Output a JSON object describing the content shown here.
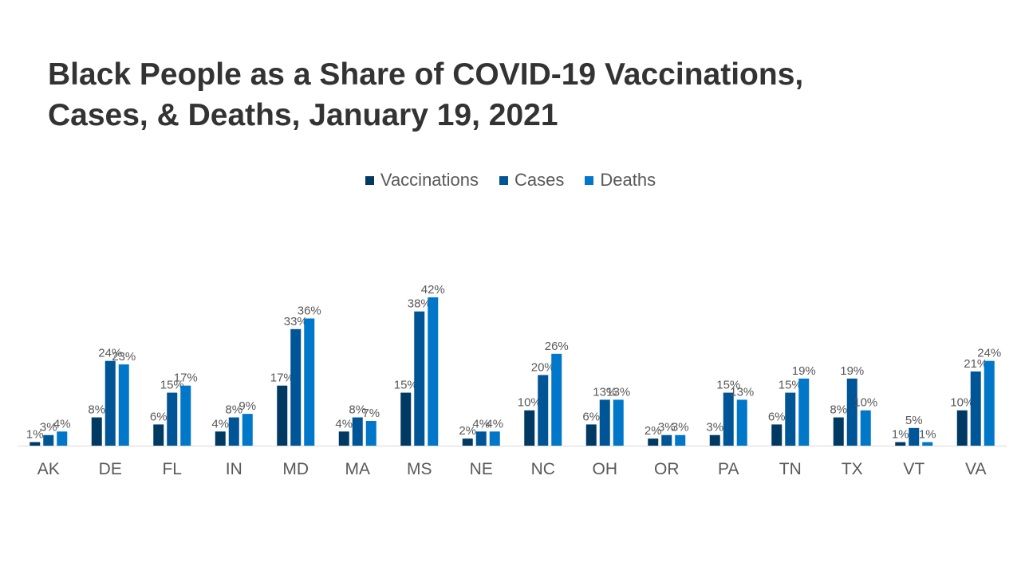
{
  "title_line1": "Black People as a Share of COVID-19 Vaccinations,",
  "title_line2": "Cases, & Deaths, January 19, 2021",
  "chart_data": {
    "type": "bar",
    "categories": [
      "AK",
      "DE",
      "FL",
      "IN",
      "MD",
      "MA",
      "MS",
      "NE",
      "NC",
      "OH",
      "OR",
      "PA",
      "TN",
      "TX",
      "VT",
      "VA"
    ],
    "series": [
      {
        "name": "Vaccinations",
        "color": "#003a63",
        "values": [
          1,
          8,
          6,
          4,
          17,
          4,
          15,
          2,
          10,
          6,
          2,
          3,
          6,
          8,
          1,
          10
        ]
      },
      {
        "name": "Cases",
        "color": "#005597",
        "values": [
          3,
          24,
          15,
          8,
          33,
          8,
          38,
          4,
          20,
          13,
          3,
          15,
          15,
          19,
          5,
          21
        ]
      },
      {
        "name": "Deaths",
        "color": "#0077c8",
        "values": [
          4,
          23,
          17,
          9,
          36,
          7,
          42,
          4,
          26,
          13,
          3,
          13,
          19,
          10,
          1,
          24
        ]
      }
    ],
    "value_suffix": "%",
    "ylim": [
      0,
      50
    ],
    "legend_position": "top-center",
    "grid": false
  }
}
